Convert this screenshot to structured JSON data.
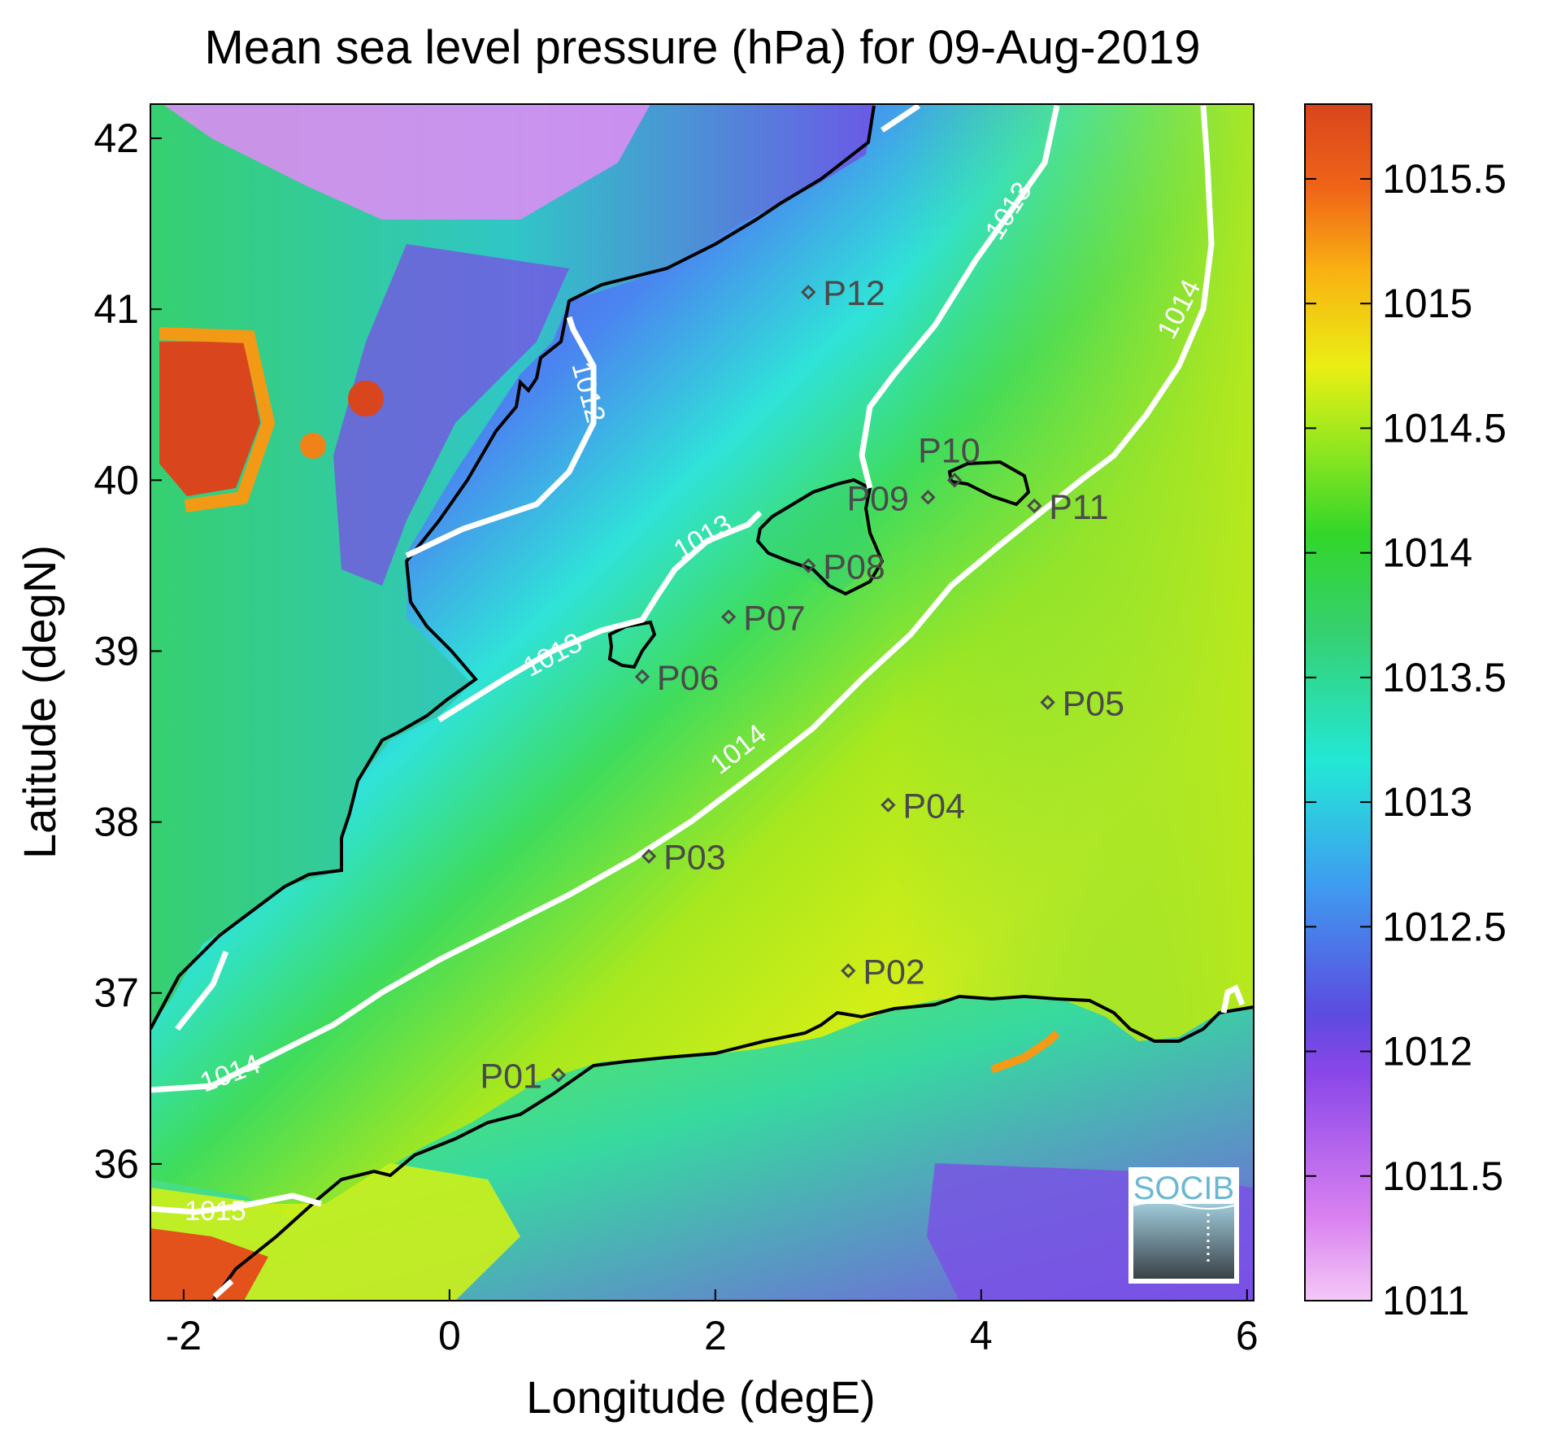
{
  "title": "Mean sea level pressure (hPa) for 09-Aug-2019",
  "xlabel": "Longitude (degE)",
  "ylabel": "Latitude (degN)",
  "x_ticks": [
    "-2",
    "0",
    "2",
    "4",
    "6"
  ],
  "y_ticks": [
    "42",
    "41",
    "40",
    "39",
    "38",
    "37",
    "36"
  ],
  "colorbar": {
    "ticks": [
      "1015.5",
      "1015",
      "1014.5",
      "1014",
      "1013.5",
      "1013",
      "1012.5",
      "1012",
      "1011.5",
      "1011"
    ],
    "range": [
      1011,
      1015.8
    ]
  },
  "contour_labels": [
    "1012",
    "1013",
    "1013",
    "1013",
    "1014",
    "1014",
    "1014",
    "1015"
  ],
  "stations": [
    {
      "id": "P01",
      "lon": 0.82,
      "lat": 36.52
    },
    {
      "id": "P02",
      "lon": 3.0,
      "lat": 37.13
    },
    {
      "id": "P03",
      "lon": 1.5,
      "lat": 37.8
    },
    {
      "id": "P04",
      "lon": 3.3,
      "lat": 38.1
    },
    {
      "id": "P05",
      "lon": 4.5,
      "lat": 38.7
    },
    {
      "id": "P06",
      "lon": 1.45,
      "lat": 38.85
    },
    {
      "id": "P07",
      "lon": 2.1,
      "lat": 39.2
    },
    {
      "id": "P08",
      "lon": 2.7,
      "lat": 39.5
    },
    {
      "id": "P09",
      "lon": 3.6,
      "lat": 39.9
    },
    {
      "id": "P10",
      "lon": 3.8,
      "lat": 40.0
    },
    {
      "id": "P11",
      "lon": 4.4,
      "lat": 39.85
    },
    {
      "id": "P12",
      "lon": 2.7,
      "lat": 41.1
    }
  ],
  "logo": "SOCIB",
  "colors": {
    "contour": "#ffffff",
    "coastline": "#000000",
    "station": "#4a4a4a"
  }
}
